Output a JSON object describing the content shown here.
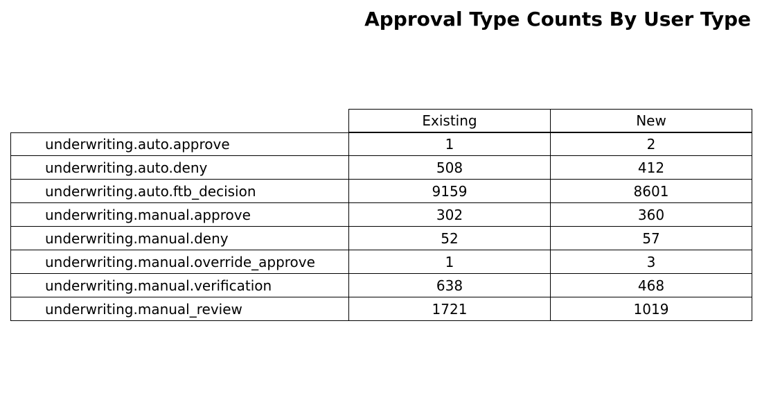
{
  "chart_data": {
    "type": "table",
    "title": "Approval Type Counts By User Type",
    "columns": [
      "Existing",
      "New"
    ],
    "rows": [
      {
        "label": "underwriting.auto.approve",
        "values": [
          "1",
          "2"
        ]
      },
      {
        "label": "underwriting.auto.deny",
        "values": [
          "508",
          "412"
        ]
      },
      {
        "label": "underwriting.auto.ftb_decision",
        "values": [
          "9159",
          "8601"
        ]
      },
      {
        "label": "underwriting.manual.approve",
        "values": [
          "302",
          "360"
        ]
      },
      {
        "label": "underwriting.manual.deny",
        "values": [
          "52",
          "57"
        ]
      },
      {
        "label": "underwriting.manual.override_approve",
        "values": [
          "1",
          "3"
        ]
      },
      {
        "label": "underwriting.manual.verification",
        "values": [
          "638",
          "468"
        ]
      },
      {
        "label": "underwriting.manual_review",
        "values": [
          "1721",
          "1019"
        ]
      }
    ]
  }
}
